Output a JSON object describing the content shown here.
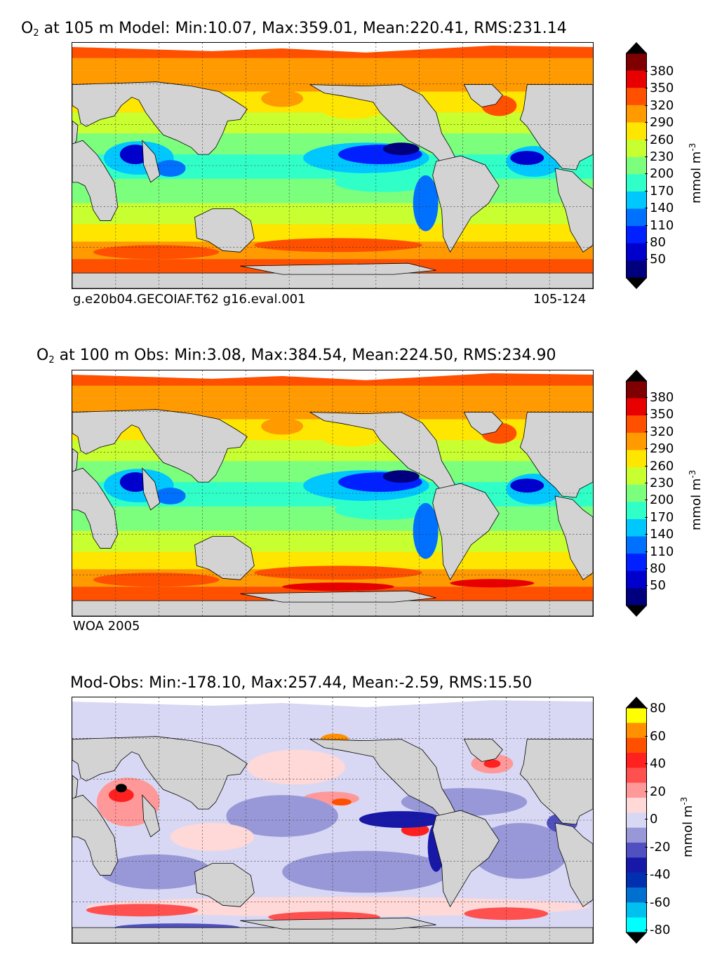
{
  "panels": [
    {
      "title_prefix": "O",
      "title_sub": "2",
      "title_rest": " at 105 m Model: Min:10.07, Max:359.01, Mean:220.41, RMS:231.14",
      "caption_left": "g.e20b04.GECOIAF.T62 g16.eval.001",
      "caption_right": "105-124",
      "colorbar_label": "mmol m",
      "colorbar_exp": "-3",
      "ticks": [
        "380",
        "350",
        "320",
        "290",
        "260",
        "230",
        "200",
        "170",
        "140",
        "110",
        "80",
        "50"
      ]
    },
    {
      "title_prefix": "O",
      "title_sub": "2",
      "title_rest": " at 100 m Obs: Min:3.08, Max:384.54, Mean:224.50, RMS:234.90",
      "caption_left": "WOA 2005",
      "caption_right": "",
      "colorbar_label": "mmol m",
      "colorbar_exp": "-3",
      "ticks": [
        "380",
        "350",
        "320",
        "290",
        "260",
        "230",
        "200",
        "170",
        "140",
        "110",
        "80",
        "50"
      ]
    },
    {
      "title_prefix": "",
      "title_sub": "",
      "title_rest": "Mod-Obs: Min:-178.10, Max:257.44, Mean:-2.59, RMS:15.50",
      "caption_left": "",
      "caption_right": "",
      "colorbar_label": "mmol m",
      "colorbar_exp": "-3",
      "ticks": [
        "80",
        "60",
        "40",
        "20",
        "0",
        "-20",
        "-40",
        "-60",
        "-80"
      ]
    }
  ],
  "colors": {
    "land": "#d3d3d3",
    "oxygen_scale": [
      "#00007f",
      "#0000cd",
      "#0020ff",
      "#0070ff",
      "#00c8ff",
      "#30ffc8",
      "#7cff7c",
      "#c8ff30",
      "#ffe600",
      "#ff9a00",
      "#ff5000",
      "#e80000",
      "#7f0000"
    ],
    "diff_scale": [
      "#00ffff",
      "#00c0f0",
      "#0070d0",
      "#0030b0",
      "#1818a8",
      "#5050c0",
      "#9898d8",
      "#d8d8f4",
      "#ffd8d8",
      "#ff9898",
      "#ff5050",
      "#ff2020",
      "#ff5000",
      "#ff9000",
      "#ffff00"
    ]
  },
  "chart_data": [
    {
      "type": "heatmap",
      "title": "O2 at 105 m Model: Min:10.07, Max:359.01, Mean:220.41, RMS:231.14",
      "field": "O2 at 105 m (Model)",
      "stats": {
        "min": 10.07,
        "max": 359.01,
        "mean": 220.41,
        "rms": 231.14
      },
      "colorbar": {
        "label": "mmol m-3",
        "levels": [
          20,
          50,
          80,
          110,
          140,
          170,
          200,
          230,
          260,
          290,
          320,
          350,
          380,
          410
        ],
        "extend": "both"
      },
      "grid": true
    },
    {
      "type": "heatmap",
      "title": "O2 at 100 m Obs: Min:3.08, Max:384.54, Mean:224.50, RMS:234.90",
      "field": "O2 at 100 m (Obs)",
      "stats": {
        "min": 3.08,
        "max": 384.54,
        "mean": 224.5,
        "rms": 234.9
      },
      "colorbar": {
        "label": "mmol m-3",
        "levels": [
          20,
          50,
          80,
          110,
          140,
          170,
          200,
          230,
          260,
          290,
          320,
          350,
          380,
          410
        ],
        "extend": "both"
      },
      "grid": true
    },
    {
      "type": "heatmap",
      "title": "Mod-Obs: Min:-178.10, Max:257.44, Mean:-2.59, RMS:15.50",
      "field": "Mod-Obs",
      "stats": {
        "min": -178.1,
        "max": 257.44,
        "mean": -2.59,
        "rms": 15.5
      },
      "colorbar": {
        "label": "mmol m-3",
        "levels": [
          -80,
          -70,
          -60,
          -50,
          -40,
          -30,
          -20,
          -10,
          0,
          10,
          20,
          30,
          40,
          50,
          60,
          70,
          80
        ],
        "extend": "both"
      },
      "grid": true
    }
  ]
}
